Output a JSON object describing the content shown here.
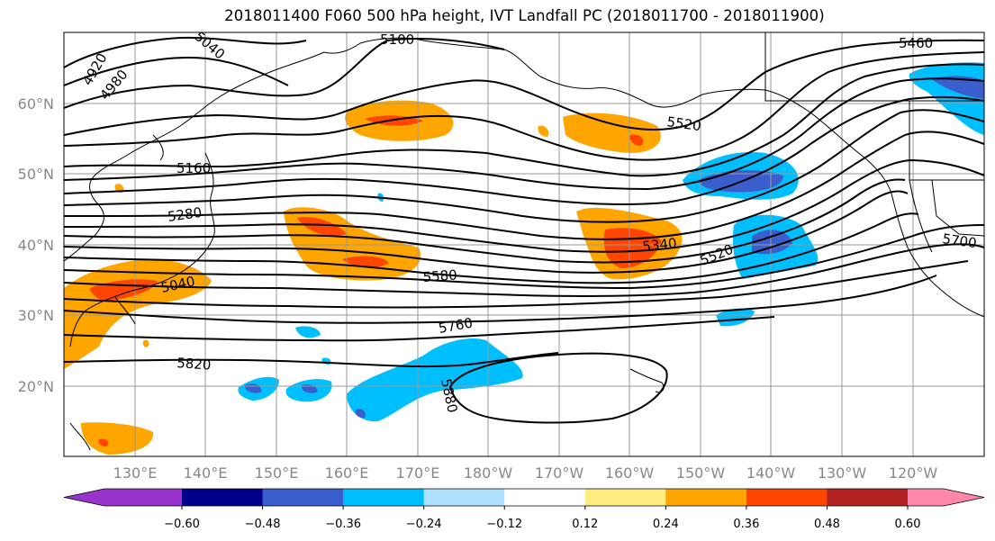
{
  "title": "2018011400 F060 500 hPa height, IVT Landfall PC (2018011700 - 2018011900)",
  "lat_ticks": [
    "60°N",
    "50°N",
    "40°N",
    "30°N",
    "20°N"
  ],
  "lon_ticks": [
    "130°E",
    "140°E",
    "150°E",
    "160°E",
    "170°E",
    "180°W",
    "170°W",
    "160°W",
    "150°W",
    "140°W",
    "130°W",
    "120°W"
  ],
  "contour_labels": [
    "4920",
    "4980",
    "5040",
    "5100",
    "5460",
    "5520",
    "5160",
    "5280",
    "5340",
    "5520",
    "5040",
    "5580",
    "5760",
    "5700",
    "5820",
    "5880"
  ],
  "colorbar": {
    "colors": [
      "#9933cc",
      "#00008b",
      "#3a5fcd",
      "#00bfff",
      "#b0e2ff",
      "#ffffff",
      "#ffeb80",
      "#ffa500",
      "#ff4500",
      "#b22222",
      "#ff88aa"
    ],
    "tick_labels": [
      "−0.60",
      "−0.48",
      "−0.36",
      "−0.24",
      "−0.12",
      "0.12",
      "0.24",
      "0.36",
      "0.48",
      "0.60"
    ]
  },
  "colors": {
    "height_contour": "#000000",
    "grid": "#999999",
    "coast": "#000000"
  }
}
